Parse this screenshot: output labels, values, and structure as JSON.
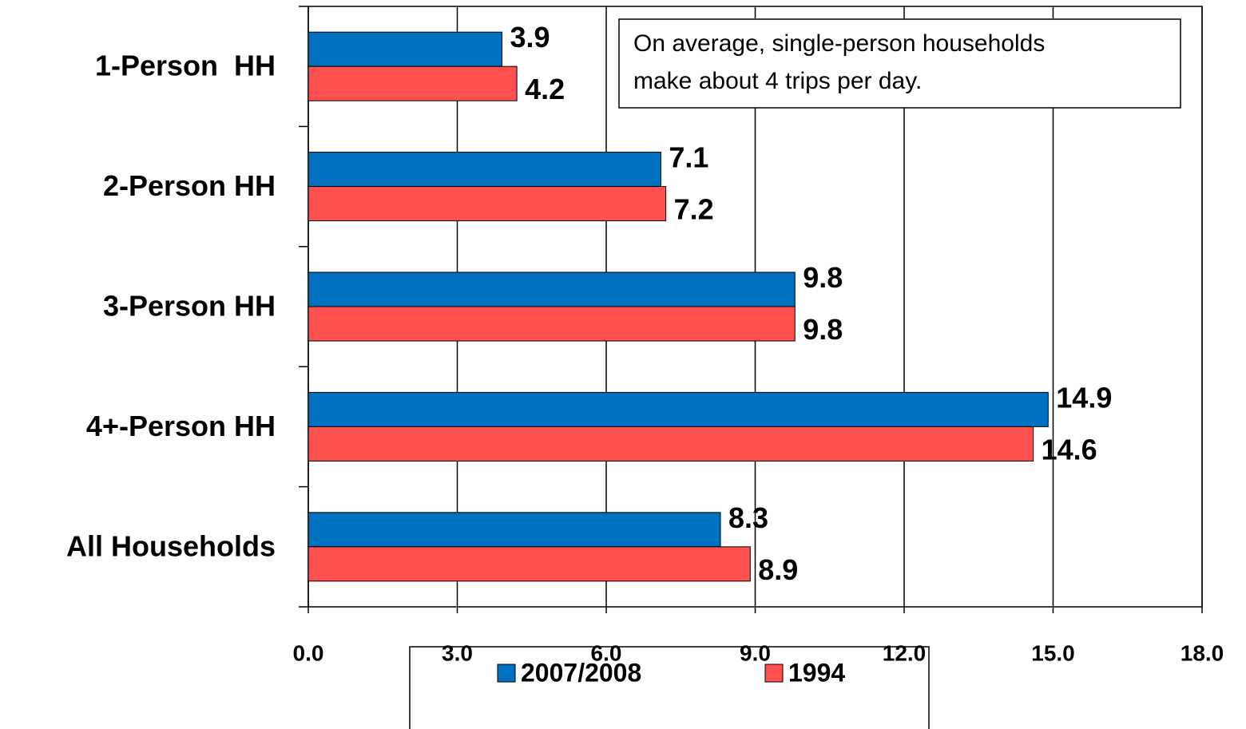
{
  "chart_data": {
    "type": "bar",
    "orientation": "horizontal",
    "categories": [
      "1-Person  HH",
      "2-Person HH",
      "3-Person HH",
      "4+-Person HH",
      "All Households"
    ],
    "series": [
      {
        "name": "2007/2008",
        "color": "#0070c0",
        "values": [
          3.9,
          7.1,
          9.8,
          14.9,
          8.3
        ]
      },
      {
        "name": "1994",
        "color": "#ff5050",
        "values": [
          4.2,
          7.2,
          9.8,
          14.6,
          8.9
        ]
      }
    ],
    "xlim": [
      0,
      18
    ],
    "xticks": [
      {
        "value": 0,
        "label": "0.0"
      },
      {
        "value": 3,
        "label": "3.0"
      },
      {
        "value": 6,
        "label": "6.0"
      },
      {
        "value": 9,
        "label": "9.0"
      },
      {
        "value": 12,
        "label": "12.0"
      },
      {
        "value": 15,
        "label": "15.0"
      },
      {
        "value": 18,
        "label": "18.0"
      }
    ],
    "grid": true,
    "legend": "bottom",
    "annotation": [
      "On average, single-person households",
      "make about 4 trips per day."
    ]
  }
}
